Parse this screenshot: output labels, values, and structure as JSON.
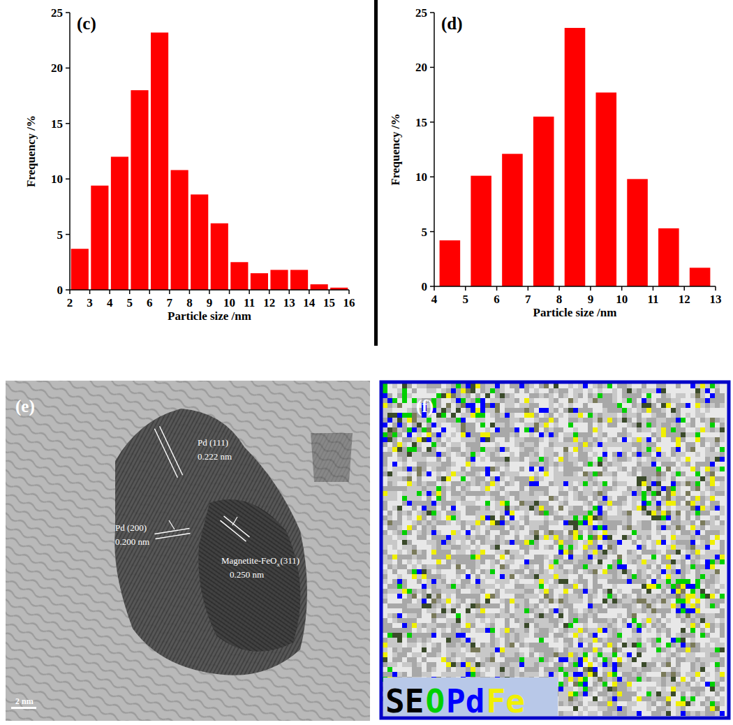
{
  "chart_data": [
    {
      "type": "histogram",
      "panel_label": "(c)",
      "x_label": "Particle size /nm",
      "y_label": "Frequency /%",
      "bins": [
        2,
        3,
        4,
        5,
        6,
        7,
        8,
        9,
        10,
        11,
        12,
        13,
        14,
        15,
        16
      ],
      "values": [
        3.7,
        9.4,
        12.0,
        18.0,
        23.2,
        10.8,
        8.6,
        6.0,
        2.5,
        1.5,
        1.8,
        1.8,
        0.5,
        0.2
      ],
      "color": "#ff0000",
      "xlim": [
        2,
        16
      ],
      "ylim": [
        0,
        25
      ],
      "xticks": [
        2,
        3,
        4,
        5,
        6,
        7,
        8,
        9,
        10,
        11,
        12,
        13,
        14,
        15,
        16
      ],
      "yticks": [
        0,
        5,
        10,
        15,
        20,
        25
      ]
    },
    {
      "type": "histogram",
      "panel_label": "(d)",
      "x_label": "Particle size /nm",
      "y_label": "Frequency /%",
      "bins": [
        4,
        5,
        6,
        7,
        8,
        9,
        10,
        11,
        12,
        13
      ],
      "values": [
        4.2,
        10.1,
        12.1,
        15.5,
        23.6,
        17.7,
        9.8,
        5.3,
        1.7
      ],
      "color": "#ff0000",
      "xlim": [
        4,
        13
      ],
      "ylim": [
        0,
        25
      ],
      "xticks": [
        4,
        5,
        6,
        7,
        8,
        9,
        10,
        11,
        12,
        13
      ],
      "yticks": [
        0,
        5,
        10,
        15,
        20,
        25
      ]
    }
  ],
  "panels": {
    "e": {
      "panel_label": "(e)",
      "annotations": [
        {
          "label_main": "Pd (111)",
          "spacing": "0.222 nm"
        },
        {
          "label_main": "Pd (200)",
          "spacing": "0.200 nm"
        },
        {
          "label_main": "Magnetite-FeO",
          "label_sub": "x",
          "label_tail": " (311)",
          "spacing": "0.250 nm"
        }
      ],
      "scale_bar": "2 nm"
    },
    "f": {
      "panel_label": "(f)",
      "element_keys": [
        {
          "name": "SE",
          "color": "#000000"
        },
        {
          "name": "O",
          "color": "#00d000"
        },
        {
          "name": "Pd",
          "color": "#0000ff"
        },
        {
          "name": "Fe",
          "color": "#f0f000"
        }
      ]
    }
  }
}
